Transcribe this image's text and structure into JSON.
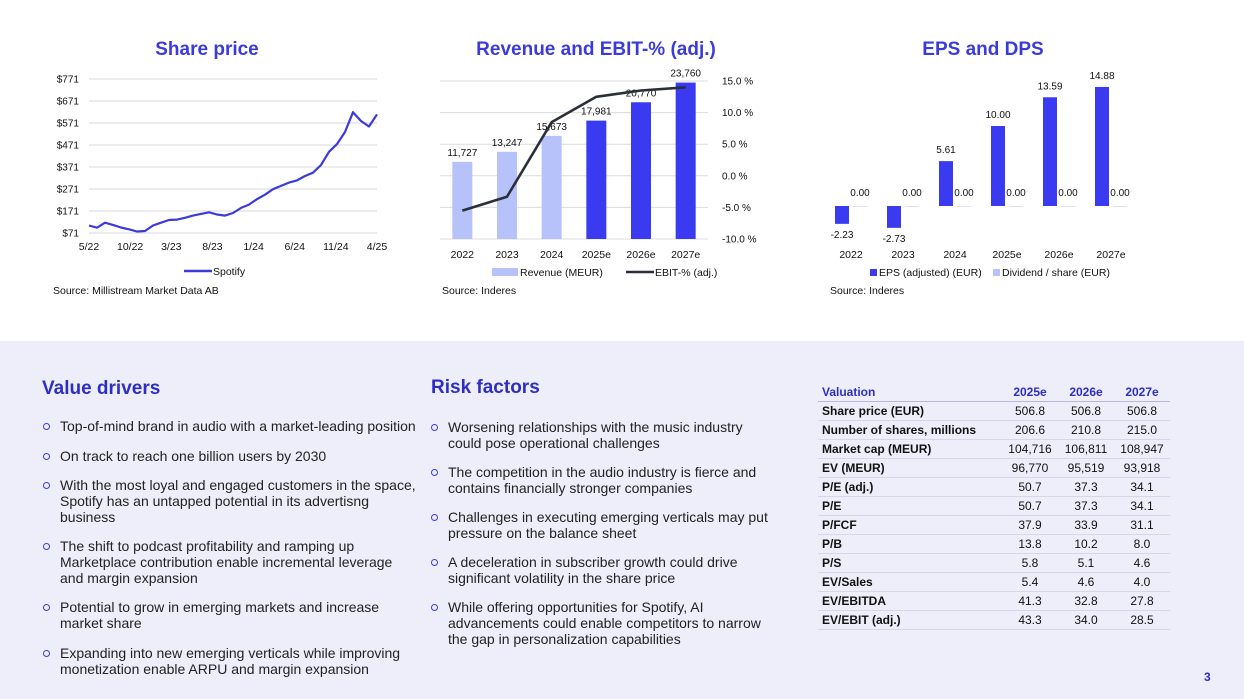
{
  "chart_data": [
    {
      "type": "line",
      "title": "Share price",
      "xticks": [
        "5/22",
        "10/22",
        "3/23",
        "8/23",
        "1/24",
        "6/24",
        "11/24",
        "4/25"
      ],
      "yticks": [
        "$771",
        "$671",
        "$571",
        "$471",
        "$371",
        "$271",
        "$171",
        "$71"
      ],
      "ylim": [
        71,
        771
      ],
      "series": [
        {
          "name": "Spotify",
          "color": "#3b3bdc",
          "x": [
            "2022-05",
            "2022-06",
            "2022-07",
            "2022-08",
            "2022-09",
            "2022-10",
            "2022-11",
            "2022-12",
            "2023-01",
            "2023-02",
            "2023-03",
            "2023-04",
            "2023-05",
            "2023-06",
            "2023-07",
            "2023-08",
            "2023-09",
            "2023-10",
            "2023-11",
            "2023-12",
            "2024-01",
            "2024-02",
            "2024-03",
            "2024-04",
            "2024-05",
            "2024-06",
            "2024-07",
            "2024-08",
            "2024-09",
            "2024-10",
            "2024-11",
            "2024-12",
            "2025-01",
            "2025-02",
            "2025-03",
            "2025-04",
            "2025-05"
          ],
          "values": [
            105,
            95,
            118,
            108,
            96,
            88,
            78,
            80,
            105,
            118,
            130,
            132,
            140,
            150,
            158,
            165,
            155,
            150,
            162,
            185,
            200,
            225,
            245,
            270,
            285,
            300,
            310,
            330,
            345,
            380,
            440,
            475,
            530,
            620,
            580,
            555,
            610
          ]
        }
      ],
      "legend": "bottom",
      "source": "Source: Millistream Market Data AB"
    },
    {
      "type": "bar",
      "title": "Revenue and EBIT-% (adj.)",
      "categories": [
        "2022",
        "2023",
        "2024",
        "2025e",
        "2026e",
        "2027e"
      ],
      "series": [
        {
          "name": "Revenue (MEUR)",
          "values": [
            11727,
            13247,
            15673,
            17981,
            20770,
            23760
          ],
          "labels": [
            "11,727",
            "13,247",
            "15,673",
            "17,981",
            "20,770",
            "23,760"
          ],
          "colors": [
            "#b8c2fa",
            "#b8c2fa",
            "#b8c2fa",
            "#3a3af0",
            "#3a3af0",
            "#3a3af0"
          ]
        },
        {
          "name": "EBIT-% (adj.)",
          "type": "line",
          "axis": "right",
          "values": [
            -5.5,
            -3.3,
            8.5,
            12.5,
            13.5,
            14.0
          ],
          "color": "#2a2f3a"
        }
      ],
      "y2ticks": [
        "15.0 %",
        "10.0 %",
        "5.0 %",
        "0.0 %",
        "-5.0 %",
        "-10.0 %"
      ],
      "y2lim": [
        -10,
        15
      ],
      "ylim": [
        0,
        24000
      ],
      "legend": "bottom",
      "source": "Source: Inderes"
    },
    {
      "type": "bar",
      "title": "EPS and DPS",
      "categories": [
        "2022",
        "2023",
        "2024",
        "2025e",
        "2026e",
        "2027e"
      ],
      "series": [
        {
          "name": "EPS (adjusted) (EUR)",
          "values": [
            -2.23,
            -2.73,
            5.61,
            10.0,
            13.59,
            14.88
          ],
          "labels": [
            "-2.23",
            "-2.73",
            "5.61",
            "10.00",
            "13.59",
            "14.88"
          ],
          "color": "#3a3af0"
        },
        {
          "name": "Dividend / share (EUR)",
          "values": [
            0,
            0,
            0,
            0,
            0,
            0
          ],
          "labels": [
            "0.00",
            "0.00",
            "0.00",
            "0.00",
            "0.00",
            "0.00"
          ],
          "color": "#b8c2fa"
        }
      ],
      "ylim": [
        -4,
        16
      ],
      "legend": "bottom",
      "source": "Source: Inderes"
    }
  ],
  "value_drivers": {
    "title": "Value drivers",
    "items": [
      "Top-of-mind brand in audio with a market-leading position",
      "On track to reach one billion users by 2030",
      "With the most loyal and engaged customers in the space, Spotify has an untapped potential in its advertisng business",
      "The shift to podcast profitability and ramping up Marketplace contribution enable incremental leverage and margin expansion",
      "Potential to grow in emerging markets and increase market share",
      "Expanding into new emerging verticals while improving monetization enable ARPU and margin expansion"
    ]
  },
  "risk_factors": {
    "title": "Risk factors",
    "items": [
      "Worsening relationships with the music industry could pose operational challenges",
      "The competition in the audio industry is fierce and contains financially stronger companies",
      "Challenges in executing emerging verticals may put pressure on the balance sheet",
      "A deceleration in subscriber growth could drive significant volatility in the share price",
      "While offering opportunities for Spotify, AI advancements could enable competitors to narrow the gap in personalization capabilities"
    ]
  },
  "valuation": {
    "header": "Valuation",
    "columns": [
      "2025e",
      "2026e",
      "2027e"
    ],
    "rows": [
      {
        "label": "Share price (EUR)",
        "values": [
          "506.8",
          "506.8",
          "506.8"
        ]
      },
      {
        "label": "Number of shares, millions",
        "values": [
          "206.6",
          "210.8",
          "215.0"
        ]
      },
      {
        "label": "Market cap (MEUR)",
        "values": [
          "104,716",
          "106,811",
          "108,947"
        ]
      },
      {
        "label": "EV (MEUR)",
        "values": [
          "96,770",
          "95,519",
          "93,918"
        ]
      },
      {
        "label": "P/E (adj.)",
        "values": [
          "50.7",
          "37.3",
          "34.1"
        ]
      },
      {
        "label": "P/E",
        "values": [
          "50.7",
          "37.3",
          "34.1"
        ]
      },
      {
        "label": "P/FCF",
        "values": [
          "37.9",
          "33.9",
          "31.1"
        ]
      },
      {
        "label": "P/B",
        "values": [
          "13.8",
          "10.2",
          "8.0"
        ]
      },
      {
        "label": "P/S",
        "values": [
          "5.8",
          "5.1",
          "4.6"
        ]
      },
      {
        "label": "EV/Sales",
        "values": [
          "5.4",
          "4.6",
          "4.0"
        ]
      },
      {
        "label": "EV/EBITDA",
        "values": [
          "41.3",
          "32.8",
          "27.8"
        ]
      },
      {
        "label": "EV/EBIT (adj.)",
        "values": [
          "43.3",
          "34.0",
          "28.5"
        ]
      }
    ]
  },
  "page_number": "3"
}
